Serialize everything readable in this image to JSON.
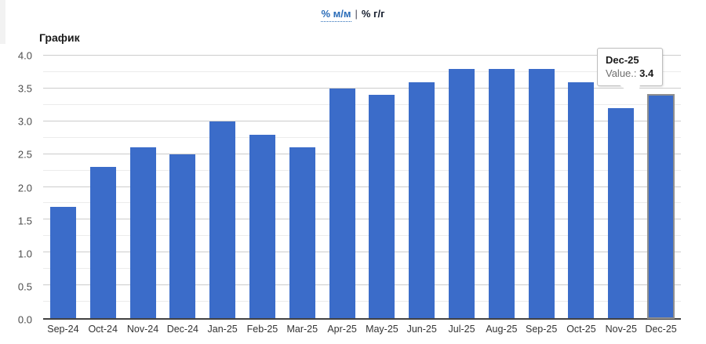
{
  "header": {
    "tab_mm_label": "% м/м",
    "separator": "|",
    "tab_yy_label": "% г/г"
  },
  "title": "График",
  "tooltip": {
    "label": "Dec-25",
    "value_prefix": "Value.:",
    "value": "3.4"
  },
  "chart_data": {
    "type": "bar",
    "title": "График",
    "categories": [
      "Sep-24",
      "Oct-24",
      "Nov-24",
      "Dec-24",
      "Jan-25",
      "Feb-25",
      "Mar-25",
      "Apr-25",
      "May-25",
      "Jun-25",
      "Jul-25",
      "Aug-25",
      "Sep-25",
      "Oct-25",
      "Nov-25",
      "Dec-25"
    ],
    "values": [
      1.7,
      2.3,
      2.6,
      2.5,
      3.0,
      2.8,
      2.6,
      3.5,
      3.4,
      3.6,
      3.8,
      3.8,
      3.8,
      3.6,
      3.2,
      3.4
    ],
    "xlabel": "",
    "ylabel": "",
    "ylim": [
      0,
      4.0
    ],
    "ytick_step": 0.5,
    "minor_grid_step": 0.25,
    "grid": true,
    "legend": "none",
    "highlighted_index": 15,
    "bar_color": "#3b6cc9",
    "highlight_stroke": "#8f8f8f"
  },
  "colors": {
    "accent_blue": "#3b6cc9",
    "link_blue": "#2a6cb8",
    "major_grid": "#cccccc",
    "minor_grid": "#ececec",
    "baseline": "#424242"
  }
}
